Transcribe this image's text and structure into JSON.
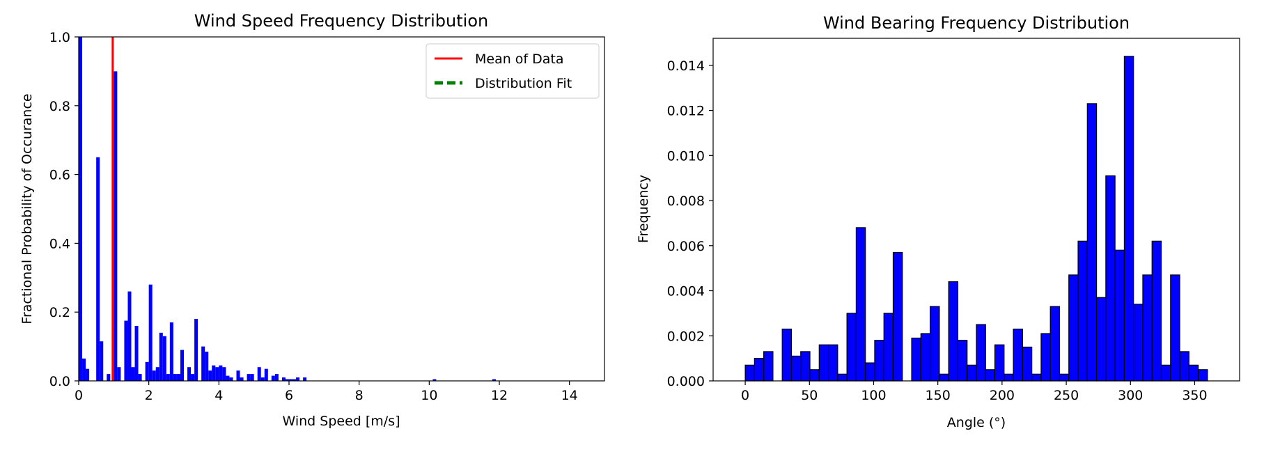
{
  "chart_data": [
    {
      "type": "bar",
      "title": "Wind Speed Frequency Distribution",
      "xlabel": "Wind Speed [m/s]",
      "ylabel": "Fractional Probability of Occurance",
      "xlim": [
        0,
        15
      ],
      "ylim": [
        0,
        1.0
      ],
      "xticks": [
        "0",
        "2",
        "4",
        "6",
        "8",
        "10",
        "12",
        "14"
      ],
      "yticks": [
        "0.0",
        "0.2",
        "0.4",
        "0.6",
        "0.8",
        "1.0"
      ],
      "grid": false,
      "bar_color": "#0000ff",
      "bin_width": 0.1,
      "x": [
        0.0,
        0.1,
        0.2,
        0.5,
        0.6,
        0.8,
        1.0,
        1.1,
        1.3,
        1.4,
        1.5,
        1.6,
        1.7,
        1.9,
        2.0,
        2.1,
        2.2,
        2.3,
        2.4,
        2.5,
        2.6,
        2.7,
        2.8,
        2.9,
        3.1,
        3.2,
        3.3,
        3.5,
        3.6,
        3.7,
        3.8,
        3.9,
        4.0,
        4.1,
        4.2,
        4.3,
        4.5,
        4.6,
        4.8,
        4.9,
        5.1,
        5.2,
        5.3,
        5.5,
        5.6,
        5.8,
        5.9,
        6.0,
        6.1,
        6.2,
        6.4,
        10.1,
        11.8
      ],
      "values": [
        1.0,
        0.065,
        0.035,
        0.65,
        0.115,
        0.02,
        0.9,
        0.04,
        0.175,
        0.26,
        0.04,
        0.16,
        0.02,
        0.055,
        0.28,
        0.03,
        0.04,
        0.14,
        0.13,
        0.02,
        0.17,
        0.02,
        0.02,
        0.09,
        0.04,
        0.02,
        0.18,
        0.1,
        0.085,
        0.03,
        0.045,
        0.04,
        0.045,
        0.04,
        0.015,
        0.01,
        0.03,
        0.01,
        0.02,
        0.02,
        0.04,
        0.01,
        0.035,
        0.015,
        0.02,
        0.01,
        0.005,
        0.005,
        0.005,
        0.01,
        0.01,
        0.005,
        0.005
      ],
      "lines": [
        {
          "name": "Mean of Data",
          "color": "#ff0000",
          "style": "solid",
          "x": 0.97
        }
      ],
      "legend": {
        "placement": "upper-right",
        "entries": [
          {
            "name": "Mean of Data",
            "color": "#ff0000",
            "style": "solid"
          },
          {
            "name": "Distribution Fit",
            "color": "#008000",
            "style": "dashed"
          }
        ]
      }
    },
    {
      "type": "bar",
      "title": "Wind Bearing Frequency Distribution",
      "xlabel": "Angle (°)",
      "ylabel": "Frequency",
      "xlim": [
        -25,
        385
      ],
      "ylim": [
        0,
        0.0152
      ],
      "xticks": [
        "0",
        "50",
        "100",
        "150",
        "200",
        "250",
        "300",
        "350"
      ],
      "yticks": [
        "0.000",
        "0.002",
        "0.004",
        "0.006",
        "0.008",
        "0.010",
        "0.012",
        "0.014"
      ],
      "grid": false,
      "bar_color": "#0000ff",
      "edge_color": "#000000",
      "bin_width": 7.2,
      "values": [
        0.0007,
        0.001,
        0.0013,
        0.0,
        0.0023,
        0.0011,
        0.0013,
        0.0005,
        0.0016,
        0.0016,
        0.0003,
        0.003,
        0.0068,
        0.0008,
        0.0018,
        0.003,
        0.0057,
        0.0,
        0.0019,
        0.0021,
        0.0033,
        0.0003,
        0.0044,
        0.0018,
        0.0007,
        0.0025,
        0.0005,
        0.0016,
        0.0003,
        0.0023,
        0.0015,
        0.0003,
        0.0021,
        0.0033,
        0.0003,
        0.0047,
        0.0062,
        0.0123,
        0.0037,
        0.0091,
        0.0058,
        0.0144,
        0.0034,
        0.0047,
        0.0062,
        0.0007,
        0.0047,
        0.0013,
        0.0007,
        0.0005
      ]
    }
  ]
}
